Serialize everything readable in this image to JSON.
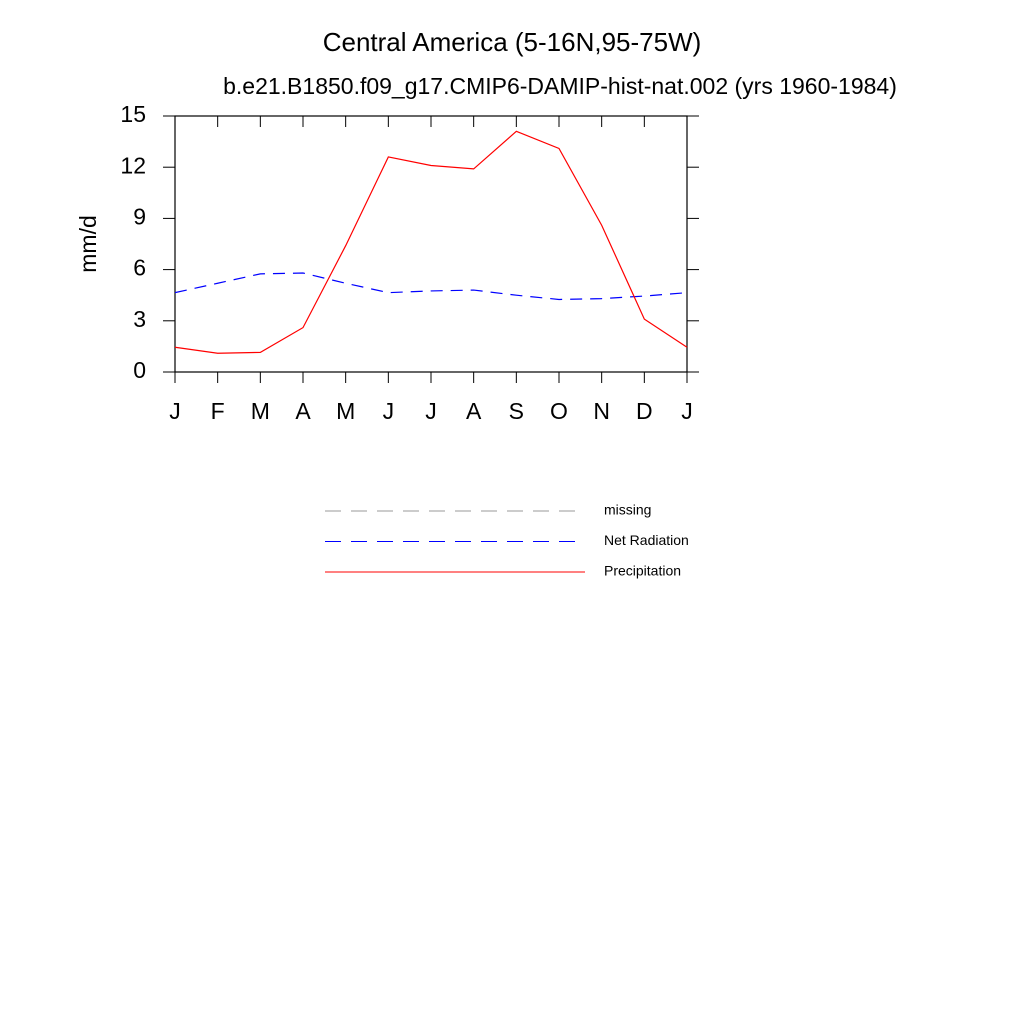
{
  "chart_data": {
    "type": "line",
    "title": "Central America (5-16N,95-75W)",
    "subtitle": "b.e21.B1850.f09_g17.CMIP6-DAMIP-hist-nat.002 (yrs 1960-1984)",
    "ylabel": "mm/d",
    "categories": [
      "J",
      "F",
      "M",
      "A",
      "M",
      "J",
      "J",
      "A",
      "S",
      "O",
      "N",
      "D",
      "J"
    ],
    "ylim": [
      0,
      15
    ],
    "yticks": [
      0,
      3,
      6,
      9,
      12,
      15
    ],
    "series": [
      {
        "name": "missing",
        "color": "#999999",
        "style": "dashed",
        "values": [
          null,
          null,
          null,
          null,
          null,
          null,
          null,
          null,
          null,
          null,
          null,
          null,
          null
        ]
      },
      {
        "name": "Net Radiation",
        "color": "#0000ff",
        "style": "dashed",
        "values": [
          4.65,
          5.2,
          5.75,
          5.8,
          5.2,
          4.65,
          4.75,
          4.8,
          4.5,
          4.25,
          4.3,
          4.45,
          4.65
        ]
      },
      {
        "name": "Precipitation",
        "color": "#ff0000",
        "style": "solid",
        "values": [
          1.45,
          1.1,
          1.15,
          2.6,
          7.4,
          12.6,
          12.1,
          11.9,
          14.1,
          13.1,
          8.6,
          3.1,
          1.45
        ]
      }
    ]
  }
}
